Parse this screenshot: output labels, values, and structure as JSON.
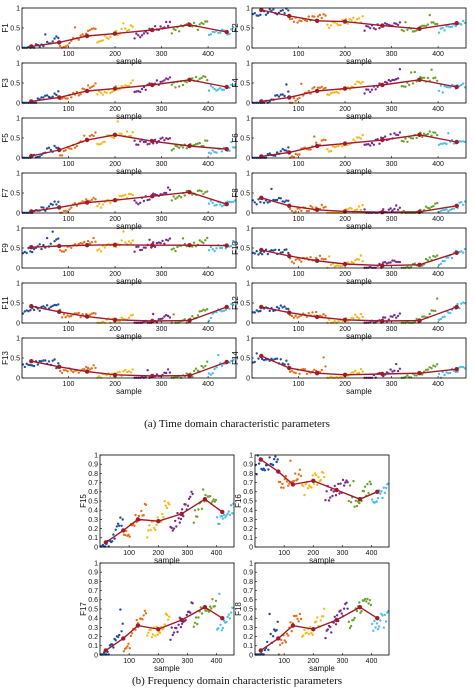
{
  "captions": {
    "time": "(a) Time domain characteristic parameters",
    "freq": "(b) Frequency domain characteristic parameters"
  },
  "colors": {
    "clusters": [
      "#1f4e9e",
      "#e8701a",
      "#f5b91c",
      "#7b2a8e",
      "#6aa22c",
      "#4cbfe8"
    ],
    "trend": "#a11a2a",
    "axis": "#000000"
  },
  "chart_data": [
    {
      "type": "scatter",
      "id": "F1",
      "ylabel": "F1",
      "xlabel": "sample",
      "xlim": [
        0,
        460
      ],
      "ylim": [
        0,
        1
      ],
      "xticks": [
        100,
        200,
        300,
        400
      ],
      "yticks": [
        0,
        0.5,
        1
      ],
      "grid": false,
      "trend": {
        "x": [
          20,
          80,
          140,
          200,
          280,
          360,
          440
        ],
        "y": [
          0.04,
          0.14,
          0.3,
          0.36,
          0.45,
          0.58,
          0.4
        ]
      }
    },
    {
      "type": "scatter",
      "id": "F2",
      "ylabel": "F2",
      "xlabel": "sample",
      "xlim": [
        0,
        460
      ],
      "ylim": [
        0,
        1
      ],
      "xticks": [
        100,
        200,
        300,
        400
      ],
      "yticks": [
        0,
        0.5,
        1
      ],
      "grid": false,
      "trend": {
        "x": [
          20,
          80,
          140,
          200,
          280,
          360,
          440
        ],
        "y": [
          0.95,
          0.8,
          0.68,
          0.66,
          0.56,
          0.48,
          0.62
        ]
      }
    },
    {
      "type": "scatter",
      "id": "F3",
      "ylabel": "F3",
      "xlabel": "sample",
      "xlim": [
        0,
        460
      ],
      "ylim": [
        0,
        1
      ],
      "xticks": [
        100,
        200,
        300,
        400
      ],
      "yticks": [
        0,
        0.5,
        1
      ],
      "grid": false,
      "trend": {
        "x": [
          20,
          80,
          140,
          200,
          280,
          360,
          440
        ],
        "y": [
          0.04,
          0.14,
          0.3,
          0.36,
          0.45,
          0.58,
          0.4
        ]
      }
    },
    {
      "type": "scatter",
      "id": "F4",
      "ylabel": "F4",
      "xlabel": "sample",
      "xlim": [
        0,
        460
      ],
      "ylim": [
        0,
        1
      ],
      "xticks": [
        100,
        200,
        300,
        400
      ],
      "yticks": [
        0,
        0.5,
        1
      ],
      "grid": false,
      "trend": {
        "x": [
          20,
          80,
          140,
          200,
          280,
          360,
          440
        ],
        "y": [
          0.04,
          0.14,
          0.3,
          0.36,
          0.45,
          0.58,
          0.4
        ]
      }
    },
    {
      "type": "scatter",
      "id": "F5",
      "ylabel": "F5",
      "xlabel": "sample",
      "xlim": [
        0,
        460
      ],
      "ylim": [
        0,
        1
      ],
      "xticks": [
        100,
        200,
        300,
        400
      ],
      "yticks": [
        0,
        0.5,
        1
      ],
      "grid": false,
      "trend": {
        "x": [
          20,
          80,
          140,
          200,
          280,
          360,
          440
        ],
        "y": [
          0.05,
          0.2,
          0.45,
          0.58,
          0.42,
          0.3,
          0.22
        ]
      }
    },
    {
      "type": "scatter",
      "id": "F6",
      "ylabel": "F6",
      "xlabel": "sample",
      "xlim": [
        0,
        460
      ],
      "ylim": [
        0,
        1
      ],
      "xticks": [
        100,
        200,
        300,
        400
      ],
      "yticks": [
        0,
        0.5,
        1
      ],
      "grid": false,
      "trend": {
        "x": [
          20,
          80,
          140,
          200,
          280,
          360,
          440
        ],
        "y": [
          0.04,
          0.14,
          0.3,
          0.36,
          0.45,
          0.58,
          0.4
        ]
      }
    },
    {
      "type": "scatter",
      "id": "F7",
      "ylabel": "F7",
      "xlabel": "sample",
      "xlim": [
        0,
        460
      ],
      "ylim": [
        0,
        1
      ],
      "xticks": [
        100,
        200,
        300,
        400
      ],
      "yticks": [
        0,
        0.5,
        1
      ],
      "grid": false,
      "trend": {
        "x": [
          20,
          80,
          140,
          200,
          280,
          360,
          440
        ],
        "y": [
          0.04,
          0.14,
          0.26,
          0.32,
          0.42,
          0.52,
          0.22
        ]
      }
    },
    {
      "type": "scatter",
      "id": "F8",
      "ylabel": "F8",
      "xlabel": "sample",
      "xlim": [
        0,
        460
      ],
      "ylim": [
        0,
        1
      ],
      "xticks": [
        100,
        200,
        300,
        400
      ],
      "yticks": [
        0,
        0.5,
        1
      ],
      "grid": false,
      "trend": {
        "x": [
          20,
          80,
          140,
          200,
          280,
          360,
          440
        ],
        "y": [
          0.38,
          0.18,
          0.08,
          0.04,
          0.02,
          0.03,
          0.18
        ]
      }
    },
    {
      "type": "scatter",
      "id": "F9",
      "ylabel": "F9",
      "xlabel": "sample",
      "xlim": [
        0,
        460
      ],
      "ylim": [
        0,
        1
      ],
      "xticks": [
        100,
        200,
        300,
        400
      ],
      "yticks": [
        0,
        0.5,
        1
      ],
      "grid": false,
      "trend": {
        "x": [
          20,
          80,
          140,
          200,
          280,
          360,
          440
        ],
        "y": [
          0.52,
          0.55,
          0.57,
          0.58,
          0.57,
          0.57,
          0.56
        ]
      }
    },
    {
      "type": "scatter",
      "id": "F10",
      "ylabel": "F10",
      "xlabel": "sample",
      "xlim": [
        0,
        460
      ],
      "ylim": [
        0,
        1
      ],
      "xticks": [
        100,
        200,
        300,
        400
      ],
      "yticks": [
        0,
        0.5,
        1
      ],
      "grid": false,
      "trend": {
        "x": [
          20,
          80,
          140,
          200,
          280,
          360,
          440
        ],
        "y": [
          0.45,
          0.3,
          0.18,
          0.1,
          0.06,
          0.08,
          0.38
        ]
      }
    },
    {
      "type": "scatter",
      "id": "F11",
      "ylabel": "F11",
      "xlabel": "sample",
      "xlim": [
        0,
        460
      ],
      "ylim": [
        0,
        1
      ],
      "xticks": [
        100,
        200,
        300,
        400
      ],
      "yticks": [
        0,
        0.5,
        1
      ],
      "grid": false,
      "trend": {
        "x": [
          20,
          80,
          140,
          200,
          280,
          360,
          440
        ],
        "y": [
          0.42,
          0.28,
          0.16,
          0.08,
          0.05,
          0.06,
          0.4
        ]
      }
    },
    {
      "type": "scatter",
      "id": "F12",
      "ylabel": "F12",
      "xlabel": "sample",
      "xlim": [
        0,
        460
      ],
      "ylim": [
        0,
        1
      ],
      "xticks": [
        100,
        200,
        300,
        400
      ],
      "yticks": [
        0,
        0.5,
        1
      ],
      "grid": false,
      "trend": {
        "x": [
          20,
          80,
          140,
          200,
          280,
          360,
          440
        ],
        "y": [
          0.4,
          0.26,
          0.15,
          0.08,
          0.05,
          0.06,
          0.4
        ]
      }
    },
    {
      "type": "scatter",
      "id": "F13",
      "ylabel": "F13",
      "xlabel": "sample",
      "xlim": [
        0,
        460
      ],
      "ylim": [
        0,
        1
      ],
      "xticks": [
        100,
        200,
        300,
        400
      ],
      "yticks": [
        0,
        0.5,
        1
      ],
      "grid": false,
      "trend": {
        "x": [
          20,
          80,
          140,
          200,
          280,
          360,
          440
        ],
        "y": [
          0.42,
          0.28,
          0.16,
          0.08,
          0.05,
          0.06,
          0.4
        ]
      }
    },
    {
      "type": "scatter",
      "id": "F14",
      "ylabel": "F14",
      "xlabel": "sample",
      "xlim": [
        0,
        460
      ],
      "ylim": [
        0,
        1
      ],
      "xticks": [
        100,
        200,
        300,
        400
      ],
      "yticks": [
        0,
        0.5,
        1
      ],
      "grid": false,
      "trend": {
        "x": [
          20,
          80,
          140,
          200,
          280,
          360,
          440
        ],
        "y": [
          0.55,
          0.25,
          0.12,
          0.08,
          0.1,
          0.12,
          0.22
        ]
      }
    },
    {
      "type": "scatter",
      "id": "F15",
      "ylabel": "F15",
      "xlabel": "sample",
      "xlim": [
        0,
        460
      ],
      "ylim": [
        0,
        1
      ],
      "xticks": [
        100,
        200,
        300,
        400
      ],
      "yticks": [
        0,
        0.1,
        0.2,
        0.3,
        0.4,
        0.5,
        0.6,
        0.7,
        0.8,
        0.9,
        1
      ],
      "grid": false,
      "trend": {
        "x": [
          20,
          80,
          130,
          200,
          280,
          360,
          420
        ],
        "y": [
          0.05,
          0.18,
          0.3,
          0.28,
          0.36,
          0.52,
          0.38
        ]
      }
    },
    {
      "type": "scatter",
      "id": "F16",
      "ylabel": "F16",
      "xlabel": "sample",
      "xlim": [
        0,
        460
      ],
      "ylim": [
        0,
        1
      ],
      "xticks": [
        100,
        200,
        300,
        400
      ],
      "yticks": [
        0,
        0.1,
        0.2,
        0.3,
        0.4,
        0.5,
        0.6,
        0.7,
        0.8,
        0.9,
        1
      ],
      "grid": false,
      "trend": {
        "x": [
          20,
          80,
          130,
          200,
          280,
          360,
          420
        ],
        "y": [
          0.95,
          0.82,
          0.68,
          0.72,
          0.62,
          0.52,
          0.6
        ]
      }
    },
    {
      "type": "scatter",
      "id": "F17",
      "ylabel": "F17",
      "xlabel": "sample",
      "xlim": [
        0,
        460
      ],
      "ylim": [
        0,
        1
      ],
      "xticks": [
        100,
        200,
        300,
        400
      ],
      "yticks": [
        0,
        0.1,
        0.2,
        0.3,
        0.4,
        0.5,
        0.6,
        0.7,
        0.8,
        0.9,
        1
      ],
      "grid": false,
      "trend": {
        "x": [
          20,
          80,
          130,
          200,
          280,
          360,
          420
        ],
        "y": [
          0.05,
          0.18,
          0.32,
          0.28,
          0.38,
          0.52,
          0.4
        ]
      }
    },
    {
      "type": "scatter",
      "id": "F18",
      "ylabel": "F18",
      "xlabel": "sample",
      "xlim": [
        0,
        460
      ],
      "ylim": [
        0,
        1
      ],
      "xticks": [
        100,
        200,
        300,
        400
      ],
      "yticks": [
        0,
        0.1,
        0.2,
        0.3,
        0.4,
        0.5,
        0.6,
        0.7,
        0.8,
        0.9,
        1
      ],
      "grid": false,
      "trend": {
        "x": [
          20,
          80,
          130,
          200,
          280,
          360,
          420
        ],
        "y": [
          0.05,
          0.18,
          0.32,
          0.28,
          0.38,
          0.52,
          0.4
        ]
      }
    }
  ]
}
